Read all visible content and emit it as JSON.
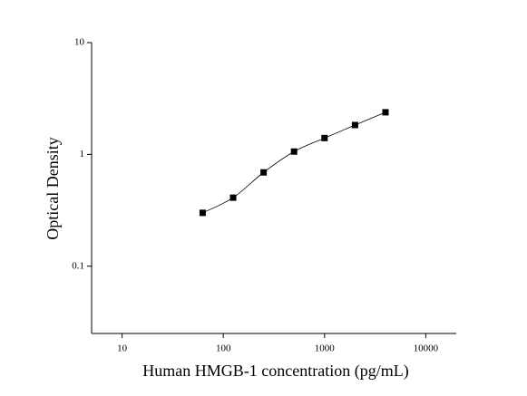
{
  "chart_data": {
    "type": "scatter",
    "x_label": "Human HMGB-1 concentration (pg/mL)",
    "y_label": "Optical Density",
    "x": [
      62.5,
      125,
      250,
      500,
      1000,
      2000,
      4000
    ],
    "series": [
      {
        "color": "#000000",
        "values": [
          0.3,
          0.41,
          0.69,
          1.06,
          1.4,
          1.83,
          2.38
        ]
      }
    ],
    "xscale": "log",
    "yscale": "log",
    "xlim": [
      5,
      20000
    ],
    "xticks": [
      10,
      100,
      1000,
      10000
    ],
    "ylim": [
      0.025,
      10
    ],
    "yticks": [
      0.1,
      1,
      10
    ],
    "fit_line": true
  }
}
